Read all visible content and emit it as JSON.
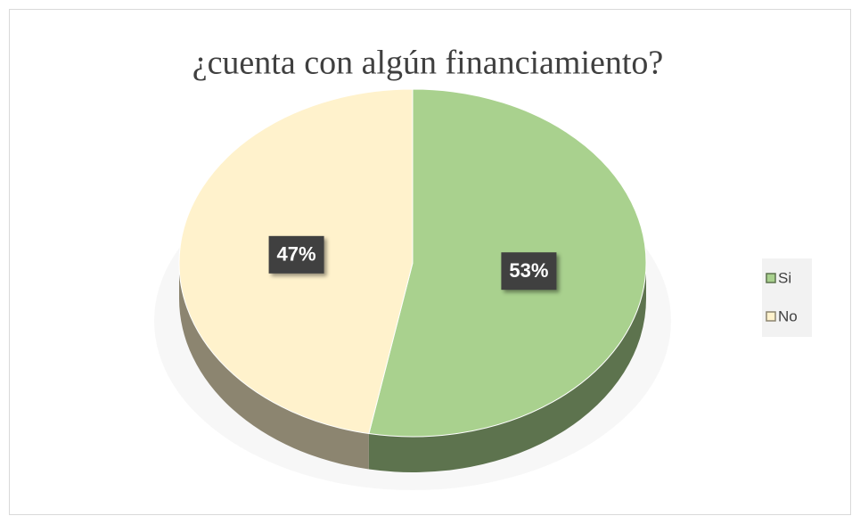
{
  "chart_data": {
    "type": "pie",
    "title": "¿cuenta con algún financiamiento?",
    "categories": [
      "Si",
      "No"
    ],
    "values": [
      53,
      47
    ],
    "value_labels": [
      "53%",
      "47%"
    ],
    "colors": [
      "#a9d18e",
      "#fff2cc"
    ],
    "legend": "right"
  }
}
